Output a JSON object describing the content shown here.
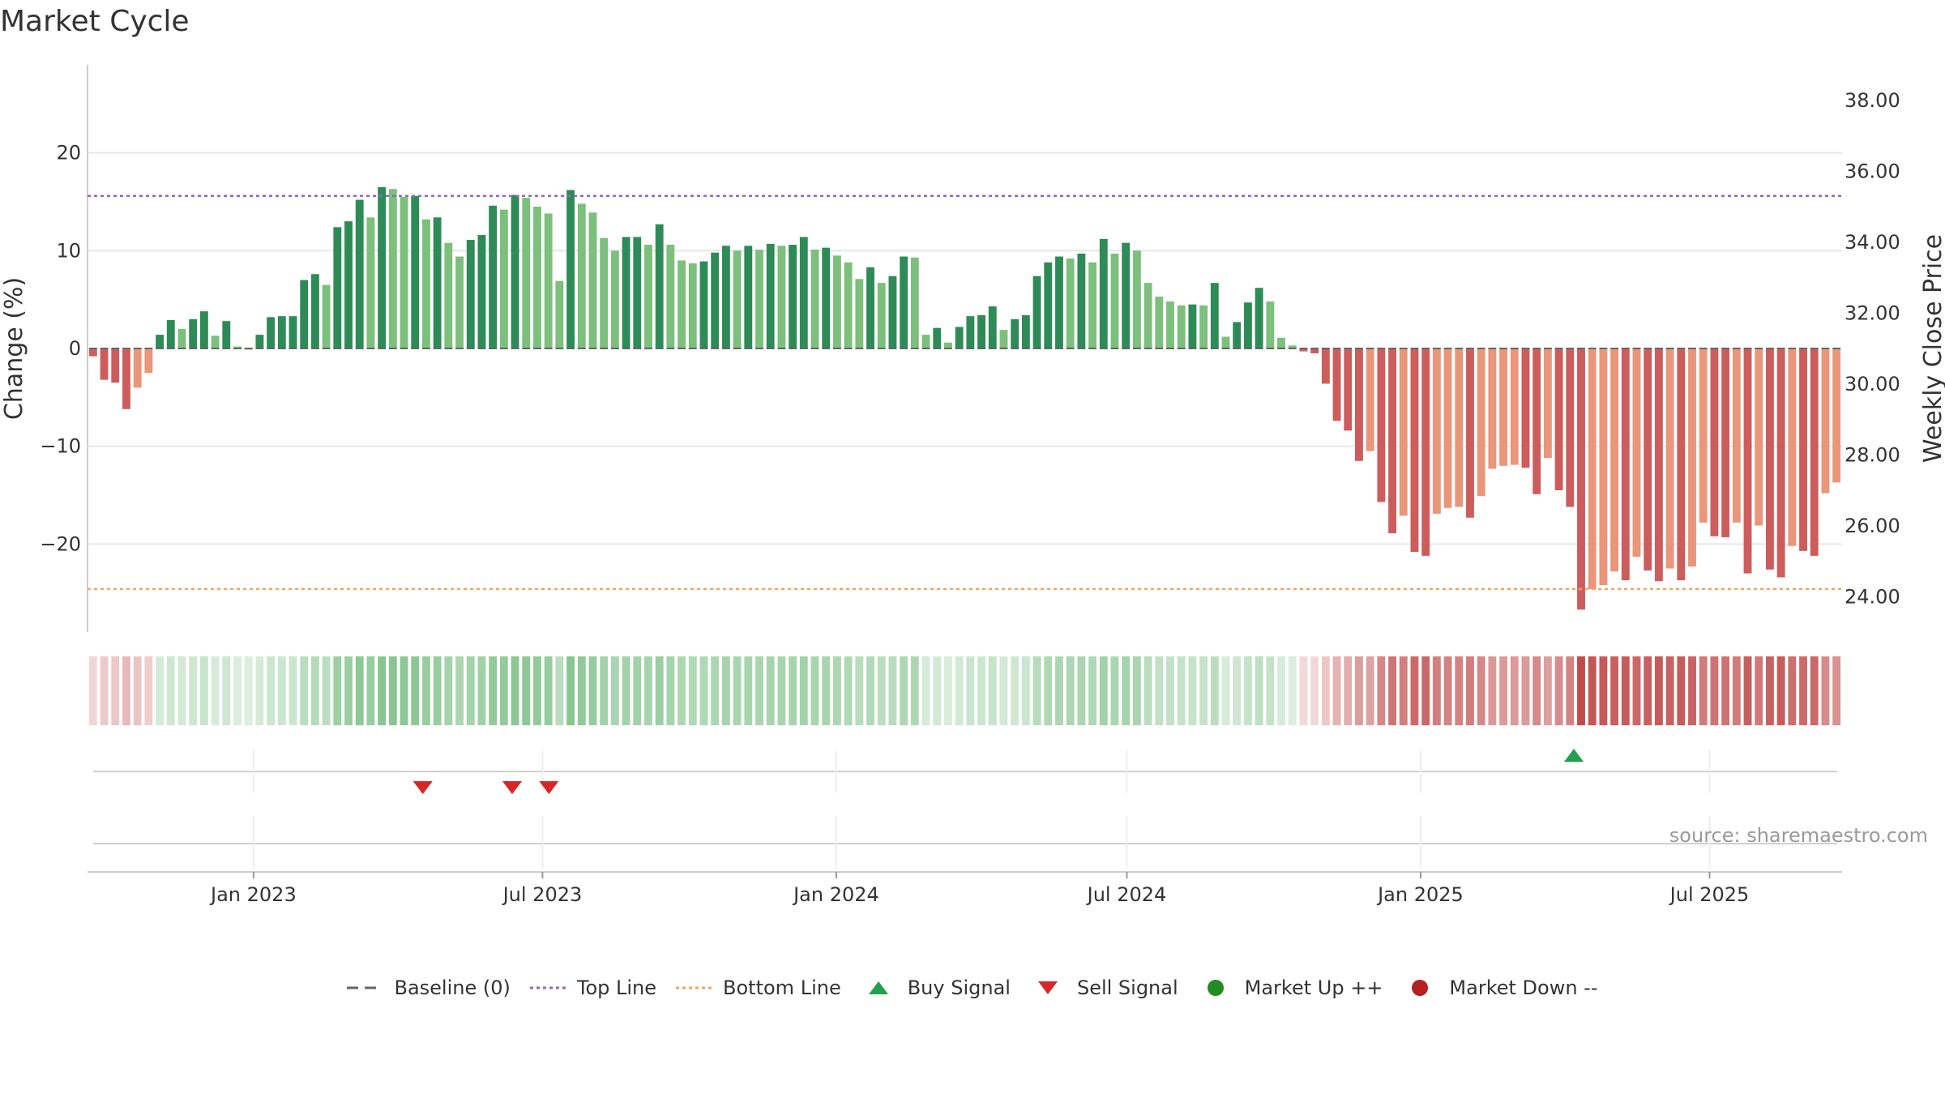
{
  "title": "Market Cycle",
  "source": "source: sharemaestro.com",
  "colors": {
    "up_strong": "#2e8b57",
    "up_weak": "#7dbf7d",
    "down_strong": "#cd5c5c",
    "down_weak": "#e9967a",
    "top_line": "#9467bd",
    "bottom_line": "#f4a460",
    "baseline": "#666666",
    "buy": "#22a04b",
    "sell": "#d62728",
    "market_up": "#228b22",
    "market_down": "#b22222"
  },
  "legend": [
    {
      "key": "baseline",
      "label": "Baseline (0)",
      "icon": "dash-line"
    },
    {
      "key": "top_line",
      "label": "Top Line",
      "icon": "dot-line"
    },
    {
      "key": "bottom_line",
      "label": "Bottom Line",
      "icon": "dot-line"
    },
    {
      "key": "buy",
      "label": "Buy Signal",
      "icon": "triangle-up"
    },
    {
      "key": "sell",
      "label": "Sell Signal",
      "icon": "triangle-down"
    },
    {
      "key": "market_up",
      "label": "Market Up ++",
      "icon": "circle"
    },
    {
      "key": "market_down",
      "label": "Market Down --",
      "icon": "circle"
    }
  ],
  "chart_data": {
    "type": "bar",
    "ylabel": "Change (%)",
    "y2label": "Weekly Close Price",
    "ylim": [
      -29,
      29
    ],
    "y2lim": [
      23.0,
      39.0
    ],
    "yticks": [
      20,
      10,
      0,
      -10,
      -20
    ],
    "y2ticks": [
      38,
      36,
      34,
      32,
      30,
      28,
      26,
      24
    ],
    "x_start": "2022-09-19",
    "x_end": "2025-09-22",
    "xticks": [
      {
        "date": "2023-01-01",
        "label": "Jan 2023"
      },
      {
        "date": "2023-07-01",
        "label": "Jul 2023"
      },
      {
        "date": "2024-01-01",
        "label": "Jan 2024"
      },
      {
        "date": "2024-07-01",
        "label": "Jul 2024"
      },
      {
        "date": "2025-01-01",
        "label": "Jan 2025"
      },
      {
        "date": "2025-07-01",
        "label": "Jul 2025"
      }
    ],
    "top_line": 15.6,
    "bottom_line": -24.6,
    "baseline": 0,
    "weekly_change": [
      -0.8,
      -3.2,
      -3.5,
      -6.2,
      -4.0,
      -2.5,
      1.4,
      2.9,
      2.0,
      3.0,
      3.8,
      1.3,
      2.8,
      0.2,
      0.0,
      1.4,
      3.2,
      3.3,
      3.3,
      7.0,
      7.6,
      6.5,
      12.4,
      13.0,
      15.2,
      13.4,
      16.5,
      16.3,
      15.5,
      15.6,
      13.2,
      13.4,
      10.8,
      9.4,
      11.1,
      11.6,
      14.6,
      14.2,
      15.7,
      15.4,
      14.5,
      13.8,
      6.9,
      16.2,
      14.8,
      13.9,
      11.3,
      10.0,
      11.4,
      11.4,
      10.6,
      12.7,
      10.6,
      9.0,
      8.7,
      8.9,
      9.8,
      10.5,
      10.0,
      10.5,
      10.1,
      10.7,
      10.5,
      10.6,
      11.4,
      10.1,
      10.3,
      9.5,
      8.8,
      7.1,
      8.3,
      6.7,
      7.4,
      9.4,
      9.3,
      1.4,
      2.1,
      0.6,
      2.2,
      3.3,
      3.4,
      4.3,
      1.9,
      3.0,
      3.4,
      7.4,
      8.8,
      9.4,
      9.2,
      9.7,
      8.8,
      11.2,
      9.7,
      10.8,
      10.0,
      6.7,
      5.3,
      4.8,
      4.4,
      4.5,
      4.4,
      6.7,
      1.2,
      2.7,
      4.7,
      6.2,
      4.8,
      1.1,
      0.3,
      -0.3,
      -0.5,
      -3.6,
      -7.4,
      -8.4,
      -11.5,
      -10.5,
      -15.7,
      -18.9,
      -17.1,
      -20.8,
      -21.2,
      -16.9,
      -16.3,
      -16.2,
      -17.3,
      -15.1,
      -12.3,
      -12.0,
      -11.9,
      -12.2,
      -14.9,
      -11.2,
      -14.5,
      -16.2,
      -26.7,
      -24.6,
      -24.2,
      -22.8,
      -23.7,
      -21.3,
      -22.7,
      -23.8,
      -22.5,
      -23.7,
      -22.3,
      -17.8,
      -19.2,
      -19.3,
      -17.8,
      -23.0,
      -18.1,
      -22.6,
      -23.4,
      -20.2,
      -20.7,
      -21.2,
      -14.8,
      -13.7
    ],
    "signals": [
      {
        "type": "sell",
        "date": "2023-04-17"
      },
      {
        "type": "sell",
        "date": "2023-06-12"
      },
      {
        "type": "sell",
        "date": "2023-07-05"
      },
      {
        "type": "buy",
        "date": "2025-04-07"
      }
    ]
  }
}
